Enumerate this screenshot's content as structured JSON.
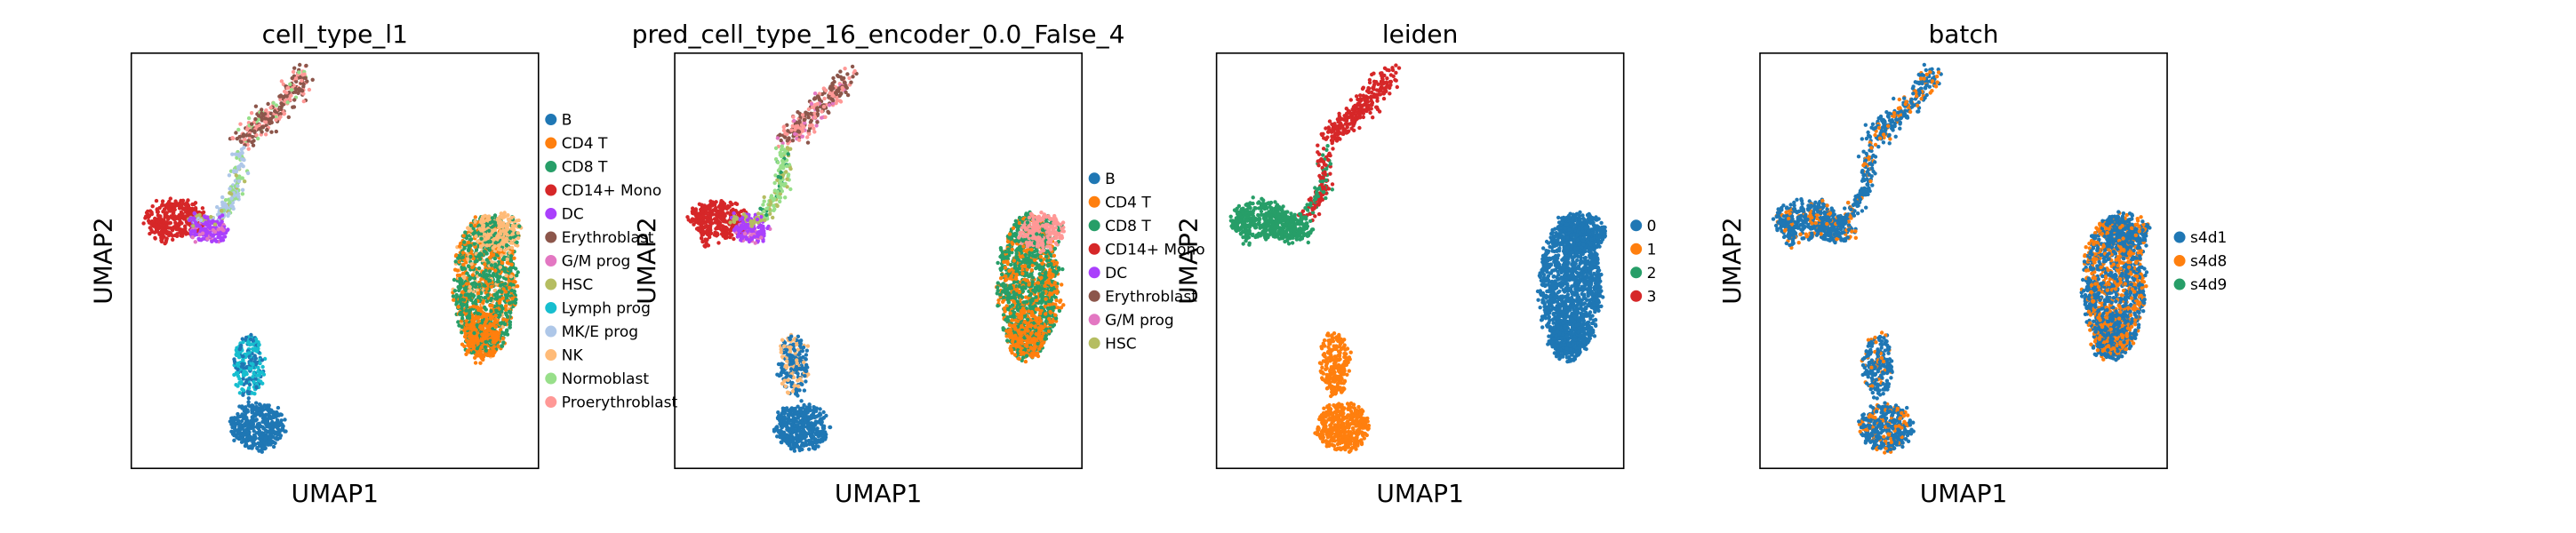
{
  "chart_data": [
    {
      "type": "scatter",
      "title": "cell_type_l1",
      "xlabel": "UMAP1",
      "ylabel": "UMAP2",
      "legend": [
        {
          "label": "B",
          "color": "#1f77b4"
        },
        {
          "label": "CD4 T",
          "color": "#ff7f0e"
        },
        {
          "label": "CD8 T",
          "color": "#279e68"
        },
        {
          "label": "CD14+ Mono",
          "color": "#d62728"
        },
        {
          "label": "DC",
          "color": "#aa40fc"
        },
        {
          "label": "Erythroblast",
          "color": "#8c564b"
        },
        {
          "label": "G/M prog",
          "color": "#e377c2"
        },
        {
          "label": "HSC",
          "color": "#b5bd61"
        },
        {
          "label": "Lymph prog",
          "color": "#17becf"
        },
        {
          "label": "MK/E prog",
          "color": "#aec7e8"
        },
        {
          "label": "NK",
          "color": "#ffbb78"
        },
        {
          "label": "Normoblast",
          "color": "#98df8a"
        },
        {
          "label": "Proerythroblast",
          "color": "#ff9896"
        }
      ]
    },
    {
      "type": "scatter",
      "title": "pred_cell_type_16_encoder_0.0_False_4",
      "xlabel": "UMAP1",
      "ylabel": "UMAP2",
      "legend": [
        {
          "label": "B",
          "color": "#1f77b4"
        },
        {
          "label": "CD4 T",
          "color": "#ff7f0e"
        },
        {
          "label": "CD8 T",
          "color": "#279e68"
        },
        {
          "label": "CD14+ Mono",
          "color": "#d62728"
        },
        {
          "label": "DC",
          "color": "#aa40fc"
        },
        {
          "label": "Erythroblast",
          "color": "#8c564b"
        },
        {
          "label": "G/M prog",
          "color": "#e377c2"
        },
        {
          "label": "HSC",
          "color": "#b5bd61"
        }
      ]
    },
    {
      "type": "scatter",
      "title": "leiden",
      "xlabel": "UMAP1",
      "ylabel": "UMAP2",
      "legend": [
        {
          "label": "0",
          "color": "#1f77b4"
        },
        {
          "label": "1",
          "color": "#ff7f0e"
        },
        {
          "label": "2",
          "color": "#279e68"
        },
        {
          "label": "3",
          "color": "#d62728"
        }
      ]
    },
    {
      "type": "scatter",
      "title": "batch",
      "xlabel": "UMAP1",
      "ylabel": "UMAP2",
      "legend": [
        {
          "label": "s4d1",
          "color": "#1f77b4"
        },
        {
          "label": "s4d8",
          "color": "#ff7f0e"
        },
        {
          "label": "s4d9",
          "color": "#279e68"
        }
      ]
    }
  ]
}
